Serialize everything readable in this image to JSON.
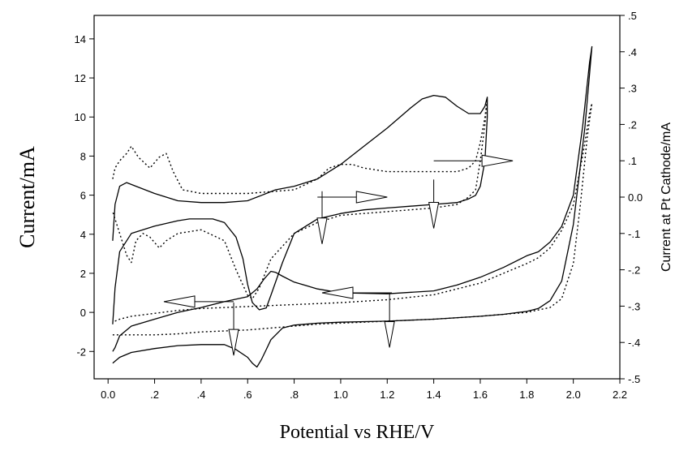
{
  "chart_data": {
    "type": "line",
    "title": "",
    "xlabel": "Potential vs RHE/V",
    "ylabel": "Current/mA",
    "y2label": "Current at Pt Cathode/mA",
    "xlim": [
      -0.06,
      2.2
    ],
    "ylim": [
      -3.4,
      15.2
    ],
    "y2lim": [
      -0.5,
      0.5
    ],
    "grid": false,
    "legend": "none",
    "x_ticks": [
      {
        "v": 0.0,
        "label": "0.0"
      },
      {
        "v": 0.2,
        "label": ".2"
      },
      {
        "v": 0.4,
        "label": ".4"
      },
      {
        "v": 0.6,
        "label": ".6"
      },
      {
        "v": 0.8,
        "label": ".8"
      },
      {
        "v": 1.0,
        "label": "1.0"
      },
      {
        "v": 1.2,
        "label": "1.2"
      },
      {
        "v": 1.4,
        "label": "1.4"
      },
      {
        "v": 1.6,
        "label": "1.6"
      },
      {
        "v": 1.8,
        "label": "1.8"
      },
      {
        "v": 2.0,
        "label": "2.0"
      },
      {
        "v": 2.2,
        "label": "2.2"
      }
    ],
    "y_ticks": [
      {
        "v": -2,
        "label": "-2"
      },
      {
        "v": 0,
        "label": "0"
      },
      {
        "v": 2,
        "label": "2"
      },
      {
        "v": 4,
        "label": "4"
      },
      {
        "v": 6,
        "label": "6"
      },
      {
        "v": 8,
        "label": "8"
      },
      {
        "v": 10,
        "label": "10"
      },
      {
        "v": 12,
        "label": "12"
      },
      {
        "v": 14,
        "label": "14"
      }
    ],
    "y2_ticks": [
      {
        "v": -0.5,
        "label": "-.5"
      },
      {
        "v": -0.4,
        "label": "-.4"
      },
      {
        "v": -0.3,
        "label": "-.3"
      },
      {
        "v": -0.2,
        "label": "-.2"
      },
      {
        "v": -0.1,
        "label": "-.1"
      },
      {
        "v": 0.0,
        "label": "0.0"
      },
      {
        "v": 0.1,
        "label": ".1"
      },
      {
        "v": 0.2,
        "label": ".2"
      },
      {
        "v": 0.3,
        "label": ".3"
      },
      {
        "v": 0.4,
        "label": ".4"
      },
      {
        "v": 0.5,
        "label": ".5"
      }
    ],
    "series": [
      {
        "style": "solid",
        "axis": "left",
        "x": [
          0.02,
          0.03,
          0.05,
          0.1,
          0.2,
          0.3,
          0.4,
          0.5,
          0.55,
          0.6,
          0.62,
          0.64,
          0.66,
          0.68,
          0.7,
          0.75,
          0.8,
          0.9,
          1.0,
          1.2,
          1.4,
          1.6,
          1.7,
          1.8,
          1.85,
          1.9,
          1.95,
          2.0,
          2.05,
          2.08,
          2.07,
          2.04,
          2.0,
          1.95,
          1.9,
          1.85,
          1.8,
          1.7,
          1.6,
          1.5,
          1.4,
          1.2,
          1.0,
          0.9,
          0.8,
          0.75,
          0.72,
          0.7,
          0.67,
          0.64,
          0.6,
          0.5,
          0.4,
          0.3,
          0.2,
          0.1,
          0.05,
          0.03,
          0.02
        ],
        "y": [
          -2.6,
          -2.5,
          -2.3,
          -2.05,
          -1.85,
          -1.7,
          -1.65,
          -1.65,
          -1.9,
          -2.3,
          -2.6,
          -2.8,
          -2.4,
          -1.9,
          -1.4,
          -0.8,
          -0.65,
          -0.55,
          -0.5,
          -0.45,
          -0.35,
          -0.2,
          -0.1,
          0.05,
          0.2,
          0.6,
          1.6,
          4.5,
          9.5,
          13.6,
          12.8,
          9.5,
          6.0,
          4.4,
          3.6,
          3.1,
          2.9,
          2.3,
          1.8,
          1.4,
          1.1,
          0.95,
          1.0,
          1.2,
          1.55,
          1.85,
          2.05,
          2.1,
          1.7,
          1.2,
          0.8,
          0.55,
          0.25,
          0.0,
          -0.35,
          -0.7,
          -1.2,
          -1.8,
          -2.0
        ]
      },
      {
        "style": "dotted",
        "axis": "left",
        "x": [
          0.02,
          0.05,
          0.1,
          0.2,
          0.3,
          0.4,
          0.5,
          0.6,
          0.7,
          0.8,
          0.9,
          1.0,
          1.2,
          1.4,
          1.6,
          1.7,
          1.8,
          1.9,
          1.95,
          2.0,
          2.03,
          2.06,
          2.08,
          2.07,
          2.04,
          2.0,
          1.95,
          1.9,
          1.85,
          1.8,
          1.7,
          1.6,
          1.5,
          1.4,
          1.2,
          1.0,
          0.8,
          0.6,
          0.4,
          0.3,
          0.2,
          0.1,
          0.05,
          0.03,
          0.02
        ],
        "y": [
          -1.15,
          -1.15,
          -1.15,
          -1.15,
          -1.1,
          -1.0,
          -0.95,
          -0.9,
          -0.8,
          -0.7,
          -0.6,
          -0.55,
          -0.45,
          -0.35,
          -0.2,
          -0.1,
          0.0,
          0.25,
          0.7,
          2.5,
          5.5,
          9.0,
          10.7,
          10.2,
          8.0,
          5.5,
          4.2,
          3.3,
          2.8,
          2.5,
          2.0,
          1.5,
          1.2,
          0.9,
          0.65,
          0.5,
          0.4,
          0.3,
          0.2,
          0.1,
          -0.05,
          -0.2,
          -0.35,
          -0.45,
          -0.5
        ]
      },
      {
        "style": "solid",
        "axis": "right",
        "x": [
          0.02,
          0.03,
          0.05,
          0.08,
          0.12,
          0.2,
          0.3,
          0.4,
          0.5,
          0.6,
          0.62,
          0.64,
          0.66,
          0.68,
          0.72,
          0.8,
          0.9,
          1.0,
          1.1,
          1.2,
          1.3,
          1.35,
          1.4,
          1.45,
          1.5,
          1.55,
          1.6,
          1.62,
          1.63,
          1.63,
          1.62,
          1.6,
          1.58,
          1.55,
          1.5,
          1.4,
          1.3,
          1.2,
          1.1,
          1.0,
          0.9,
          0.8,
          0.75,
          0.7,
          0.68,
          0.65,
          0.62,
          0.6,
          0.58,
          0.55,
          0.5,
          0.45,
          0.4,
          0.35,
          0.3,
          0.2,
          0.1,
          0.05,
          0.03,
          0.02
        ],
        "y": [
          -0.12,
          -0.02,
          0.03,
          0.04,
          0.03,
          0.01,
          -0.01,
          -0.015,
          -0.015,
          -0.01,
          -0.005,
          0.0,
          0.005,
          0.01,
          0.02,
          0.03,
          0.05,
          0.09,
          0.14,
          0.19,
          0.245,
          0.27,
          0.28,
          0.275,
          0.25,
          0.23,
          0.23,
          0.25,
          0.275,
          0.22,
          0.1,
          0.03,
          0.005,
          -0.005,
          -0.015,
          -0.02,
          -0.025,
          -0.03,
          -0.035,
          -0.045,
          -0.06,
          -0.1,
          -0.18,
          -0.27,
          -0.305,
          -0.31,
          -0.29,
          -0.24,
          -0.17,
          -0.11,
          -0.07,
          -0.06,
          -0.06,
          -0.06,
          -0.065,
          -0.08,
          -0.1,
          -0.15,
          -0.25,
          -0.35
        ]
      },
      {
        "style": "dotted",
        "axis": "right",
        "x": [
          0.02,
          0.03,
          0.05,
          0.08,
          0.1,
          0.13,
          0.18,
          0.22,
          0.25,
          0.28,
          0.32,
          0.4,
          0.6,
          0.8,
          0.9,
          0.95,
          1.0,
          1.05,
          1.1,
          1.2,
          1.3,
          1.4,
          1.5,
          1.55,
          1.58,
          1.6,
          1.62,
          1.63,
          1.62,
          1.6,
          1.58,
          1.55,
          1.5,
          1.4,
          1.2,
          1.0,
          0.9,
          0.8,
          0.7,
          0.65,
          0.62,
          0.6,
          0.55,
          0.5,
          0.4,
          0.3,
          0.25,
          0.22,
          0.18,
          0.15,
          0.12,
          0.1,
          0.08,
          0.05,
          0.03,
          0.02
        ],
        "y": [
          0.05,
          0.08,
          0.1,
          0.12,
          0.14,
          0.11,
          0.08,
          0.11,
          0.12,
          0.07,
          0.02,
          0.01,
          0.01,
          0.02,
          0.05,
          0.08,
          0.09,
          0.09,
          0.08,
          0.07,
          0.07,
          0.07,
          0.07,
          0.08,
          0.1,
          0.15,
          0.22,
          0.27,
          0.2,
          0.1,
          0.02,
          0.0,
          -0.02,
          -0.03,
          -0.04,
          -0.05,
          -0.07,
          -0.1,
          -0.17,
          -0.25,
          -0.28,
          -0.27,
          -0.2,
          -0.12,
          -0.09,
          -0.1,
          -0.12,
          -0.14,
          -0.11,
          -0.1,
          -0.12,
          -0.18,
          -0.16,
          -0.1,
          -0.06,
          -0.04
        ]
      }
    ],
    "annotations": {
      "horizontal_arrows": [
        {
          "axis": "right",
          "x1": 0.9,
          "x2": 1.2,
          "y": 0.0,
          "dir": "right"
        },
        {
          "axis": "right",
          "x1": 1.4,
          "x2": 1.74,
          "y": 0.1,
          "dir": "right"
        },
        {
          "axis": "left",
          "x1": 1.22,
          "x2": 0.92,
          "y": 1.0,
          "dir": "left"
        },
        {
          "axis": "left",
          "x1": 0.54,
          "x2": 0.24,
          "y": 0.55,
          "dir": "left"
        }
      ],
      "vertical_arrows": [
        {
          "x": 0.92,
          "y1": 6.2,
          "y2": 3.5
        },
        {
          "x": 1.4,
          "y1": 6.8,
          "y2": 4.3
        },
        {
          "x": 1.21,
          "y1": 0.95,
          "y2": -1.8
        },
        {
          "x": 0.54,
          "y1": 0.5,
          "y2": -2.2
        }
      ]
    }
  }
}
